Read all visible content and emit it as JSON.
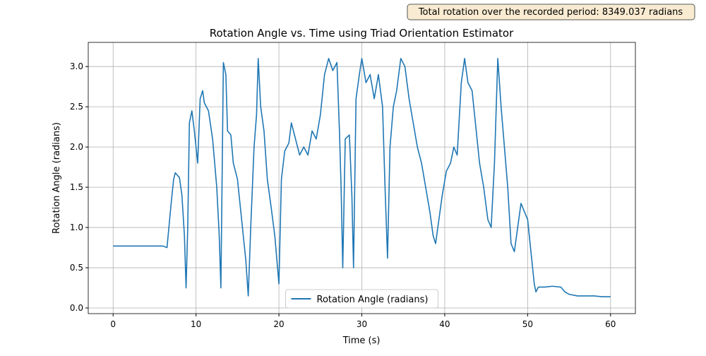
{
  "chart_data": {
    "type": "line",
    "title": "Rotation Angle vs. Time  using Triad Orientation Estimator",
    "annotation": "Total rotation over the recorded period: 8349.037 radians",
    "x_label": "Time (s)",
    "y_label": "Rotation Angle (radians)",
    "x": [
      0,
      1,
      2,
      3,
      4,
      5,
      6,
      6.5,
      7,
      7.3,
      7.5,
      8,
      8.3,
      8.6,
      8.8,
      9.0,
      9.2,
      9.5,
      9.8,
      10.2,
      10.5,
      10.8,
      11,
      11.5,
      12,
      12.5,
      12.8,
      13.0,
      13.3,
      13.6,
      13.8,
      14.2,
      14.5,
      15,
      15.5,
      16,
      16.3,
      16.6,
      17,
      17.3,
      17.5,
      17.8,
      18.2,
      18.6,
      19,
      19.5,
      20,
      20.3,
      20.7,
      21.2,
      21.5,
      22,
      22.5,
      23,
      23.5,
      24,
      24.5,
      25,
      25.5,
      26,
      26.5,
      27,
      27.3,
      27.5,
      27.7,
      28,
      28.5,
      28.8,
      29,
      29.3,
      29.7,
      30,
      30.5,
      31,
      31.5,
      32,
      32.5,
      32.8,
      33.1,
      33.4,
      33.8,
      34.2,
      34.7,
      35.2,
      35.7,
      36.2,
      36.7,
      37.2,
      37.7,
      38.2,
      38.6,
      38.9,
      39.3,
      39.7,
      40.2,
      40.7,
      41.1,
      41.5,
      42,
      42.4,
      42.8,
      43.3,
      43.8,
      44.2,
      44.7,
      45.2,
      45.6,
      46,
      46.4,
      46.8,
      47.2,
      47.6,
      48,
      48.4,
      48.8,
      49.2,
      49.6,
      50,
      50.4,
      50.8,
      51,
      51.3,
      52,
      53,
      54,
      54.5,
      55,
      56,
      57,
      58,
      59,
      60
    ],
    "series": [
      {
        "name": "Rotation Angle (radians)",
        "color": "#1f77b4",
        "values": [
          0.77,
          0.77,
          0.77,
          0.77,
          0.77,
          0.77,
          0.77,
          0.75,
          1.3,
          1.6,
          1.68,
          1.62,
          1.4,
          0.9,
          0.25,
          1.0,
          2.3,
          2.45,
          2.2,
          1.8,
          2.6,
          2.7,
          2.55,
          2.45,
          2.1,
          1.5,
          0.9,
          0.25,
          3.05,
          2.9,
          2.2,
          2.15,
          1.8,
          1.6,
          1.1,
          0.6,
          0.15,
          1.0,
          2.0,
          2.4,
          3.1,
          2.5,
          2.2,
          1.6,
          1.3,
          0.9,
          0.3,
          1.6,
          1.95,
          2.05,
          2.3,
          2.1,
          1.9,
          2.0,
          1.9,
          2.2,
          2.1,
          2.4,
          2.9,
          3.1,
          2.95,
          3.05,
          2.2,
          1.5,
          0.5,
          2.1,
          2.15,
          1.4,
          0.5,
          2.6,
          2.9,
          3.1,
          2.8,
          2.9,
          2.6,
          2.9,
          2.5,
          1.5,
          0.62,
          2.0,
          2.5,
          2.7,
          3.1,
          3.0,
          2.6,
          2.3,
          2.0,
          1.8,
          1.5,
          1.2,
          0.9,
          0.8,
          1.1,
          1.4,
          1.7,
          1.8,
          2.0,
          1.9,
          2.8,
          3.1,
          2.8,
          2.7,
          2.2,
          1.8,
          1.5,
          1.1,
          1.0,
          1.8,
          3.1,
          2.5,
          2.0,
          1.5,
          0.8,
          0.7,
          1.0,
          1.3,
          1.2,
          1.1,
          0.7,
          0.3,
          0.2,
          0.26,
          0.26,
          0.27,
          0.26,
          0.2,
          0.17,
          0.15,
          0.15,
          0.15,
          0.14,
          0.14
        ]
      }
    ],
    "xlim": [
      -3,
      63
    ],
    "ylim": [
      -0.07,
      3.3
    ],
    "xticks": [
      0,
      10,
      20,
      30,
      40,
      50,
      60
    ],
    "yticks": [
      {
        "value": 0,
        "label": "0.0"
      },
      0.5,
      {
        "value": 1,
        "label": "1.0"
      },
      1.5,
      {
        "value": 2,
        "label": "2.0"
      },
      2.5,
      {
        "value": 3,
        "label": "3.0"
      }
    ],
    "grid": true,
    "legend": "lower center"
  }
}
